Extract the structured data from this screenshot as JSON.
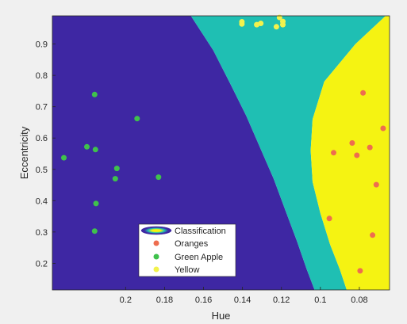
{
  "chart_data": {
    "type": "scatter",
    "title": "",
    "xlabel": "Hue",
    "ylabel": "Eccentricity",
    "xlim": [
      0.0645,
      0.2376
    ],
    "ylim": [
      0.115,
      0.99
    ],
    "x_reversed": true,
    "grid": false,
    "legend_position": "bottom-center",
    "xticks": [
      0.2,
      0.18,
      0.16,
      0.14,
      0.12,
      0.1,
      0.08
    ],
    "xtick_labels": [
      "0.2",
      "0.18",
      "0.16",
      "0.14",
      "0.12",
      "0.1",
      "0.08"
    ],
    "yticks": [
      0.2,
      0.3,
      0.4,
      0.5,
      0.6,
      0.7,
      0.8,
      0.9
    ],
    "ytick_labels": [
      "0.2",
      "0.3",
      "0.4",
      "0.5",
      "0.6",
      "0.7",
      "0.8",
      "0.9"
    ],
    "background": {
      "name": "Classification",
      "regions": [
        {
          "label": "Green Apple",
          "color": "#3e27a3"
        },
        {
          "label": "Oranges",
          "color": "#1fbfb3"
        },
        {
          "label": "Yellow",
          "color": "#f5f312"
        }
      ],
      "boundary_green_apple_oranges": [
        [
          0.1665,
          0.99
        ],
        [
          0.155,
          0.88
        ],
        [
          0.146,
          0.77
        ],
        [
          0.138,
          0.67
        ],
        [
          0.131,
          0.57
        ],
        [
          0.124,
          0.47
        ],
        [
          0.118,
          0.37
        ],
        [
          0.112,
          0.27
        ],
        [
          0.107,
          0.18
        ],
        [
          0.103,
          0.115
        ]
      ],
      "boundary_oranges_yellow": [
        [
          0.0665,
          0.99
        ],
        [
          0.082,
          0.9
        ],
        [
          0.098,
          0.78
        ],
        [
          0.104,
          0.66
        ],
        [
          0.105,
          0.56
        ],
        [
          0.104,
          0.46
        ],
        [
          0.1,
          0.36
        ],
        [
          0.095,
          0.26
        ],
        [
          0.09,
          0.18
        ],
        [
          0.0865,
          0.115
        ]
      ]
    },
    "series": [
      {
        "name": "Oranges",
        "color": "#ee6d4f",
        "points": [
          [
            0.0781,
            0.744
          ],
          [
            0.0678,
            0.631
          ],
          [
            0.0837,
            0.584
          ],
          [
            0.0746,
            0.57
          ],
          [
            0.0932,
            0.553
          ],
          [
            0.0813,
            0.545
          ],
          [
            0.0713,
            0.451
          ],
          [
            0.0954,
            0.343
          ],
          [
            0.0732,
            0.29
          ],
          [
            0.0796,
            0.176
          ]
        ]
      },
      {
        "name": "Green Apple",
        "color": "#3fc14c",
        "points": [
          [
            0.2159,
            0.739
          ],
          [
            0.1941,
            0.662
          ],
          [
            0.2199,
            0.572
          ],
          [
            0.2155,
            0.563
          ],
          [
            0.2317,
            0.537
          ],
          [
            0.2045,
            0.503
          ],
          [
            0.1831,
            0.475
          ],
          [
            0.2053,
            0.47
          ],
          [
            0.2152,
            0.391
          ],
          [
            0.2159,
            0.303
          ]
        ]
      },
      {
        "name": "Yellow",
        "color": "#f2f24c",
        "points": [
          [
            0.121,
            0.985
          ],
          [
            0.1403,
            0.971
          ],
          [
            0.1327,
            0.962
          ],
          [
            0.1226,
            0.955
          ],
          [
            0.1193,
            0.972
          ],
          [
            0.1193,
            0.962
          ],
          [
            0.1403,
            0.964
          ],
          [
            0.1306,
            0.966
          ]
        ]
      }
    ]
  }
}
